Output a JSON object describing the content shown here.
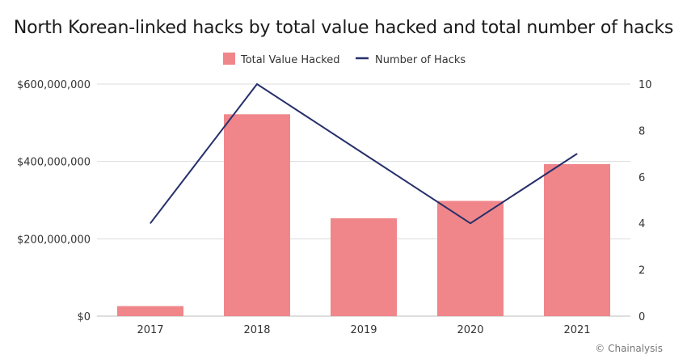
{
  "chart_data": {
    "type": "bar",
    "title": "North Korean-linked hacks by total value hacked and total number of hacks",
    "categories": [
      "2017",
      "2018",
      "2019",
      "2020",
      "2021"
    ],
    "series": [
      {
        "name": "Total Value Hacked",
        "type": "bar",
        "axis": "left",
        "color": "#f0868a",
        "values": [
          26000000,
          522000000,
          253000000,
          298000000,
          393000000
        ]
      },
      {
        "name": "Number of Hacks",
        "type": "line",
        "axis": "right",
        "color": "#27306b",
        "values": [
          4,
          10,
          7,
          4,
          7
        ]
      }
    ],
    "y_left": {
      "ylim": [
        0,
        600000000
      ],
      "ticks": [
        0,
        200000000,
        400000000,
        600000000
      ],
      "tick_labels": [
        "$0",
        "$200,000,000",
        "$400,000,000",
        "$600,000,000"
      ]
    },
    "y_right": {
      "ylim": [
        0,
        10
      ],
      "ticks": [
        0,
        2,
        4,
        6,
        8,
        10
      ],
      "tick_labels": [
        "0",
        "2",
        "4",
        "6",
        "8",
        "10"
      ]
    },
    "grid": true,
    "legend_position": "top-center"
  },
  "credit": "© Chainalysis"
}
